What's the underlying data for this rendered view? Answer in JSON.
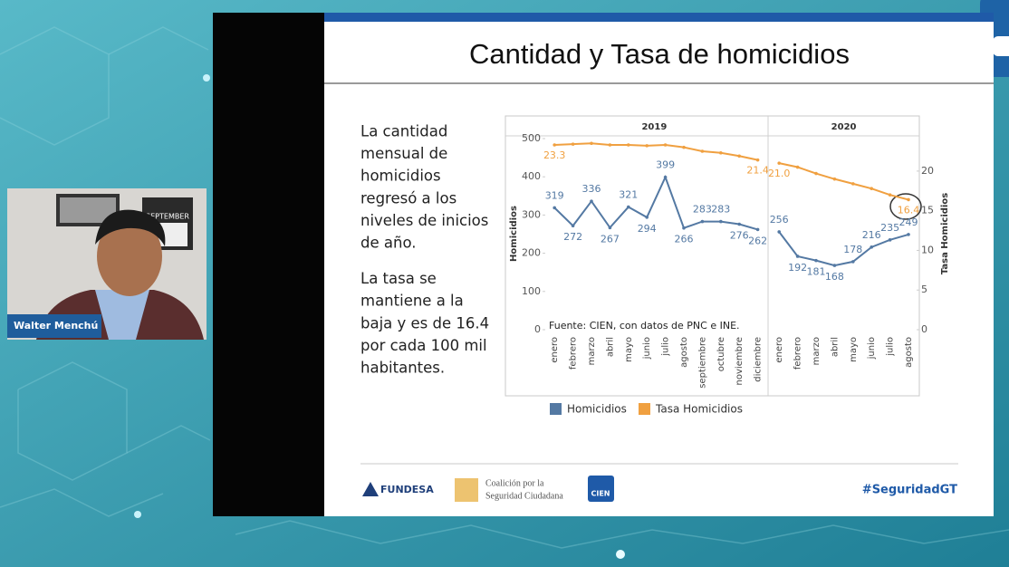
{
  "speaker": {
    "name": "Walter Menchú",
    "poster": "SEPTEMBER"
  },
  "slide": {
    "title": "Cantidad y Tasa de homicidios",
    "paragraphs": [
      [
        "La cantidad",
        "mensual de",
        "homicidios",
        "regresó a los",
        "niveles de inicios",
        "de año."
      ],
      [
        "La tasa se",
        "mantiene a la",
        "baja y es de 16.4",
        "por cada 100 mil",
        "habitantes."
      ]
    ],
    "chart": {
      "type": "line",
      "source": "Fuente: CIEN, con datos de PNC e INE.",
      "ylabel": "Homicidios",
      "y2label": "Tasa Homicidios",
      "ylim": [
        0,
        500
      ],
      "yticks": [
        0,
        100,
        200,
        300,
        400,
        500
      ],
      "y2lim": [
        0,
        24.1
      ],
      "y2ticks": [
        0,
        5,
        10,
        15,
        20
      ],
      "panels": [
        {
          "title": "2019",
          "categories": [
            "enero",
            "febrero",
            "marzo",
            "abril",
            "mayo",
            "junio",
            "julio",
            "agosto",
            "septiembre",
            "octubre",
            "noviembre",
            "diciembre"
          ]
        },
        {
          "title": "2020",
          "categories": [
            "enero",
            "febrero",
            "marzo",
            "abril",
            "mayo",
            "junio",
            "julio",
            "agosto"
          ]
        }
      ],
      "series": [
        {
          "name": "Homicidios",
          "color": "#5479a3",
          "values": [
            [
              319,
              272,
              336,
              267,
              321,
              294,
              399,
              266,
              283,
              283,
              276,
              262
            ],
            [
              256,
              192,
              181,
              168,
              178,
              216,
              235,
              249
            ]
          ]
        },
        {
          "name": "Tasa Homicidios",
          "color": "#f0a040",
          "axis": "y2",
          "values": [
            [
              23.3,
              23.4,
              23.5,
              23.3,
              23.3,
              23.2,
              23.3,
              23.0,
              22.5,
              22.3,
              21.9,
              21.4
            ],
            [
              21.0,
              20.5,
              19.7,
              19.0,
              18.4,
              17.8,
              17.0,
              16.4
            ]
          ],
          "value_labels": [
            [
              "23.3",
              null,
              null,
              null,
              null,
              null,
              null,
              null,
              null,
              null,
              null,
              "21.4"
            ],
            [
              "21.0",
              null,
              null,
              null,
              null,
              null,
              null,
              "16.4"
            ]
          ]
        }
      ]
    },
    "footer": {
      "fundesa": "FUNDESA",
      "coalition": [
        "Coalición por la",
        "Seguridad Ciudadana"
      ],
      "cien": "CIEN",
      "hashtag": "#SeguridadGT"
    }
  }
}
